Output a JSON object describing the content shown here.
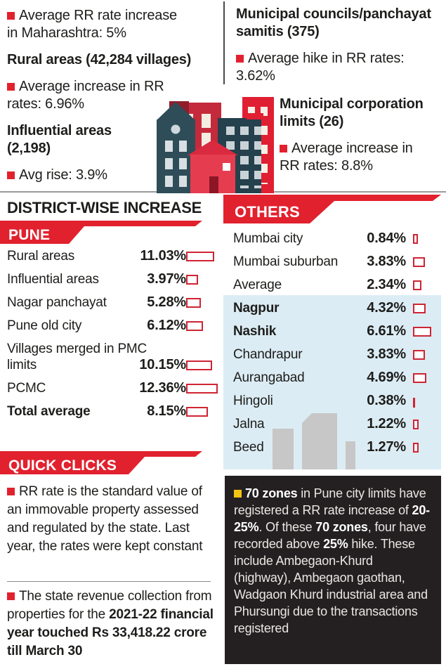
{
  "colors": {
    "red": "#e2212e",
    "dark_text": "#1d1d1b",
    "blue_band": "#dcecf4",
    "black_box": "#242021",
    "yellow_bullet": "#f2c413",
    "bar_outline": "#cf2433",
    "silhouette_gray": "#c7c7c7"
  },
  "top_stats": {
    "left": [
      {
        "type": "bullet",
        "text": "Average RR rate increase\nin Maharashtra: 5%"
      },
      {
        "type": "heading",
        "text": "Rural areas (42,284 villages)"
      },
      {
        "type": "bullet",
        "text": "Average increase in RR\nrates: 6.96%"
      },
      {
        "type": "heading",
        "text": "Influential areas\n(2,198)"
      },
      {
        "type": "bullet",
        "text": "Avg rise: 3.9%"
      }
    ],
    "right_upper": [
      {
        "type": "heading",
        "text": "Municipal councils/panchayat\nsamitis (375)"
      },
      {
        "type": "bullet",
        "text": "Average hike in RR rates:\n3.62%"
      }
    ],
    "right_lower": [
      {
        "type": "heading",
        "text": "Municipal corporation\nlimits (26)"
      },
      {
        "type": "bullet",
        "text": "Average increase in\nRR rates: 8.8%"
      }
    ]
  },
  "district_section": {
    "title": "DISTRICT-WISE INCREASE",
    "banner": "PUNE",
    "rows": [
      {
        "label": "Rural areas",
        "value": "11.03%",
        "pct": 11.03
      },
      {
        "label": "Influential areas",
        "value": "3.97%",
        "pct": 3.97
      },
      {
        "label": "Nagar panchayat",
        "value": "5.28%",
        "pct": 5.28
      },
      {
        "label": "Pune old city",
        "value": "6.12%",
        "pct": 6.12
      },
      {
        "label": "Villages merged in PMC\nlimits",
        "value": "10.15%",
        "pct": 10.15
      },
      {
        "label": "PCMC",
        "value": "12.36%",
        "pct": 12.36
      },
      {
        "label": "Total average",
        "value": "8.15%",
        "pct": 8.15,
        "bold": true
      }
    ]
  },
  "others_section": {
    "banner": "OTHERS",
    "rows": [
      {
        "label": "Mumbai city",
        "value": "0.84%",
        "pct": 0.84
      },
      {
        "label": "Mumbai suburban",
        "value": "3.83%",
        "pct": 3.83
      },
      {
        "label": "Average",
        "value": "2.34%",
        "pct": 2.34
      },
      {
        "label": "Nagpur",
        "value": "4.32%",
        "pct": 4.32,
        "bold": true
      },
      {
        "label": "Nashik",
        "value": "6.61%",
        "pct": 6.61,
        "bold": true
      },
      {
        "label": "Chandrapur",
        "value": "3.83%",
        "pct": 3.83
      },
      {
        "label": "Aurangabad",
        "value": "4.69%",
        "pct": 4.69
      },
      {
        "label": "Hingoli",
        "value": "0.38%",
        "pct": 0.38
      },
      {
        "label": "Jalna",
        "value": "1.22%",
        "pct": 1.22
      },
      {
        "label": "Beed",
        "value": "1.27%",
        "pct": 1.27
      }
    ]
  },
  "quick_clicks": {
    "banner": "QUICK CLICKS",
    "para1": [
      {
        "t": "RR rate is the standard value of an immovable property assessed and regulated by the state. Last year, the rates were kept constant"
      }
    ],
    "para2": [
      {
        "t": "The state revenue collection from properties for the "
      },
      {
        "t": "2021-22 financial year touched Rs 33,418.22 crore till March 30",
        "b": true
      }
    ]
  },
  "zones_note": {
    "segments": [
      {
        "t": "70 zones",
        "b": true
      },
      {
        "t": " in Pune city limits have registered a RR rate increase of "
      },
      {
        "t": "20-25%",
        "b": true
      },
      {
        "t": ". Of these "
      },
      {
        "t": "70 zones",
        "b": true
      },
      {
        "t": ", four have recorded above "
      },
      {
        "t": "25%",
        "b": true
      },
      {
        "t": " hike. These include Ambegaon-Khurd (highway), Ambegaon gaothan, Wadgaon Khurd industrial area and Phursungi due to the transactions registered"
      }
    ]
  }
}
